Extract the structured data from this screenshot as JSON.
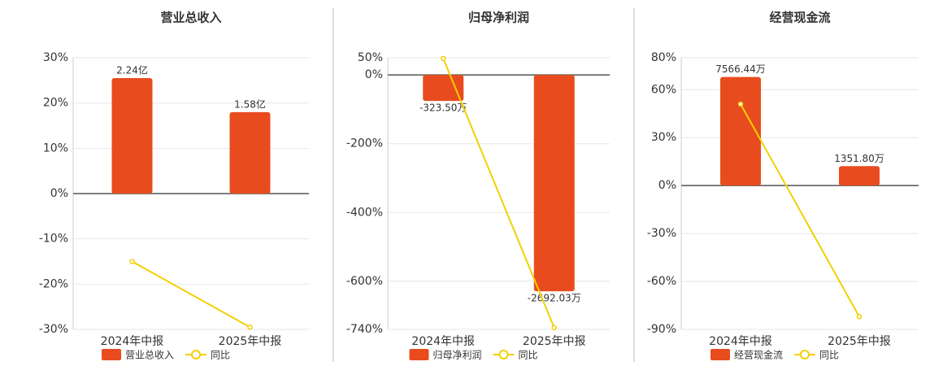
{
  "chart_data": [
    {
      "type": "combo",
      "title": "营业总收入",
      "categories": [
        "2024年中报",
        "2025年中报"
      ],
      "series": [
        {
          "name": "营业总收入",
          "type": "bar",
          "color": "#e84c1e",
          "values": [
            2.24,
            1.58
          ],
          "value_labels": [
            "2.24亿",
            "1.58亿"
          ]
        },
        {
          "name": "同比",
          "type": "line",
          "color": "#f2d000",
          "values": [
            -15,
            -29.5
          ]
        }
      ],
      "ylim": [
        -30,
        30
      ],
      "yticks": [
        {
          "value": 30,
          "label": "30%"
        },
        {
          "value": 20,
          "label": "20%"
        },
        {
          "value": 10,
          "label": "10%"
        },
        {
          "value": 0,
          "label": "0%"
        },
        {
          "value": -10,
          "label": "-10%"
        },
        {
          "value": -20,
          "label": "-20%"
        },
        {
          "value": -30,
          "label": "-30%"
        }
      ],
      "grid": true
    },
    {
      "type": "combo",
      "title": "归母净利润",
      "categories": [
        "2024年中报",
        "2025年中报"
      ],
      "series": [
        {
          "name": "归母净利润",
          "type": "bar",
          "color": "#e84c1e",
          "values": [
            -323.5,
            -2692.03
          ],
          "value_labels": [
            "-323.50万",
            "-2692.03万"
          ]
        },
        {
          "name": "同比",
          "type": "line",
          "color": "#f2d000",
          "values": [
            48,
            -735
          ]
        }
      ],
      "ylim": [
        -740,
        50
      ],
      "yticks": [
        {
          "value": 50,
          "label": "50%"
        },
        {
          "value": 0,
          "label": "0%"
        },
        {
          "value": -200,
          "label": "-200%"
        },
        {
          "value": -400,
          "label": "-400%"
        },
        {
          "value": -600,
          "label": "-600%"
        },
        {
          "value": -740,
          "label": "-740%"
        }
      ],
      "grid": true
    },
    {
      "type": "combo",
      "title": "经营现金流",
      "categories": [
        "2024年中报",
        "2025年中报"
      ],
      "series": [
        {
          "name": "经营现金流",
          "type": "bar",
          "color": "#e84c1e",
          "values": [
            7566.44,
            1351.8
          ],
          "value_labels": [
            "7566.44万",
            "1351.80万"
          ]
        },
        {
          "name": "同比",
          "type": "line",
          "color": "#f2d000",
          "values": [
            51,
            -82
          ]
        }
      ],
      "ylim": [
        -90,
        80
      ],
      "yticks": [
        {
          "value": 80,
          "label": "80%"
        },
        {
          "value": 60,
          "label": "60%"
        },
        {
          "value": 30,
          "label": "30%"
        },
        {
          "value": 0,
          "label": "0%"
        },
        {
          "value": -30,
          "label": "-30%"
        },
        {
          "value": -60,
          "label": "-60%"
        },
        {
          "value": -90,
          "label": "-90%"
        }
      ],
      "grid": true
    }
  ]
}
